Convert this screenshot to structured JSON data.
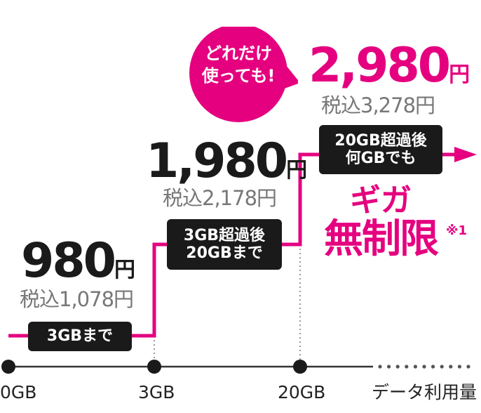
{
  "colors": {
    "accent": "#e5007f",
    "dark": "#1a1a1a",
    "muted": "#777777"
  },
  "bubble": {
    "line1": "どれだけ",
    "line2": "使っても!"
  },
  "tiers": [
    {
      "price": "980",
      "yen": "円",
      "tax": "税込1,078円",
      "box_line1": "3GBまで",
      "box_line2": ""
    },
    {
      "price": "1,980",
      "yen": "円",
      "tax": "税込2,178円",
      "box_line1": "3GB超過後",
      "box_line2": "20GBまで"
    },
    {
      "price": "2,980",
      "yen": "円",
      "tax": "税込3,278円",
      "box_line1": "20GB超過後",
      "box_line2": "何GBでも"
    }
  ],
  "unlimited": {
    "line1": "ギガ",
    "line2": "無制限",
    "note": "※1"
  },
  "chart_data": {
    "type": "line",
    "subtype": "step",
    "xlabel": "データ利用量",
    "ylabel": "",
    "x_ticks": [
      "0GB",
      "3GB",
      "20GB"
    ],
    "series": [
      {
        "x": [
          0,
          3,
          3,
          20,
          20
        ],
        "y": [
          980,
          980,
          1980,
          1980,
          2980
        ],
        "extends_past_last_tick": true
      }
    ],
    "x_axis_continues": true,
    "grid": false
  }
}
